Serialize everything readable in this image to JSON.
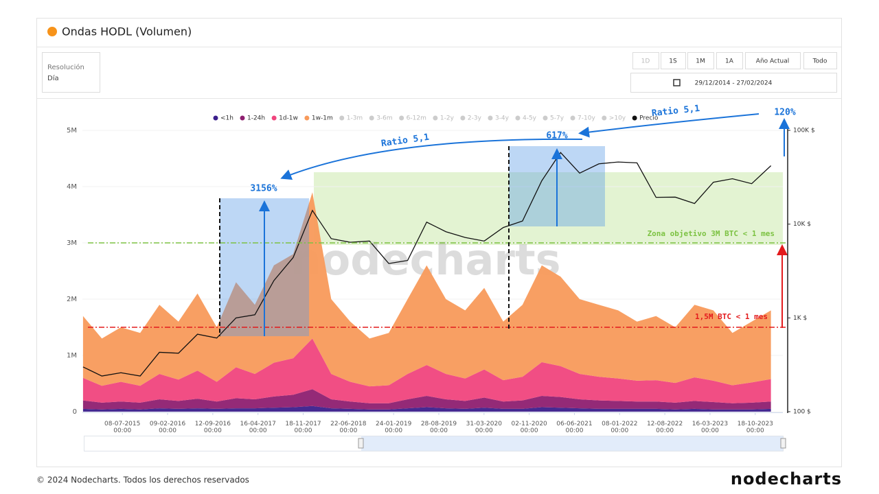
{
  "header": {
    "title": "Ondas HODL (Volumen)"
  },
  "controls": {
    "resolution_label": "Resolución",
    "resolution_value": "Día",
    "buttons": [
      "1D",
      "1S",
      "1M",
      "1A",
      "Año Actual",
      "Todo"
    ],
    "date_range": "29/12/2014 - 27/02/2024"
  },
  "chart_data": {
    "type": "area",
    "stacked": true,
    "x": [
      "2015-01-01",
      "2015-04-01",
      "2015-07-01",
      "2015-10-01",
      "2016-01-01",
      "2016-04-01",
      "2016-07-01",
      "2016-10-01",
      "2017-01-01",
      "2017-04-01",
      "2017-07-01",
      "2017-10-01",
      "2018-01-01",
      "2018-04-01",
      "2018-07-01",
      "2018-10-01",
      "2019-01-01",
      "2019-04-01",
      "2019-07-01",
      "2019-10-01",
      "2020-01-01",
      "2020-04-01",
      "2020-07-01",
      "2020-10-01",
      "2021-01-01",
      "2021-04-01",
      "2021-07-01",
      "2021-10-01",
      "2022-01-01",
      "2022-04-01",
      "2022-07-01",
      "2022-10-01",
      "2023-01-01",
      "2023-04-01",
      "2023-07-01",
      "2023-10-01",
      "2024-01-01"
    ],
    "series": [
      {
        "name": "<1h",
        "color": "#3b1f8c",
        "values": [
          50000,
          40000,
          50000,
          40000,
          60000,
          50000,
          60000,
          50000,
          60000,
          60000,
          70000,
          80000,
          100000,
          60000,
          50000,
          40000,
          40000,
          60000,
          80000,
          60000,
          50000,
          70000,
          50000,
          50000,
          80000,
          70000,
          60000,
          50000,
          50000,
          50000,
          50000,
          40000,
          50000,
          40000,
          40000,
          40000,
          50000
        ]
      },
      {
        "name": "1-24h",
        "color": "#8e1f70",
        "values": [
          150000,
          120000,
          130000,
          120000,
          160000,
          140000,
          170000,
          130000,
          180000,
          160000,
          200000,
          220000,
          300000,
          160000,
          130000,
          110000,
          110000,
          160000,
          200000,
          160000,
          140000,
          180000,
          130000,
          150000,
          200000,
          190000,
          160000,
          150000,
          140000,
          130000,
          130000,
          120000,
          140000,
          130000,
          110000,
          120000,
          130000
        ]
      },
      {
        "name": "1d-1w",
        "color": "#f0457d",
        "values": [
          400000,
          300000,
          350000,
          300000,
          450000,
          380000,
          500000,
          350000,
          550000,
          450000,
          600000,
          650000,
          900000,
          450000,
          350000,
          300000,
          320000,
          450000,
          550000,
          450000,
          400000,
          500000,
          380000,
          420000,
          600000,
          550000,
          450000,
          420000,
          400000,
          370000,
          380000,
          350000,
          420000,
          380000,
          320000,
          360000,
          400000
        ]
      },
      {
        "name": "1w-1m",
        "color": "#f89a5b",
        "values": [
          1100000,
          840000,
          970000,
          940000,
          1230000,
          1030000,
          1370000,
          970000,
          1510000,
          1230000,
          1730000,
          1850000,
          2600000,
          1330000,
          1070000,
          850000,
          930000,
          1330000,
          1770000,
          1330000,
          1210000,
          1450000,
          1040000,
          1280000,
          1720000,
          1590000,
          1330000,
          1280000,
          1210000,
          1050000,
          1140000,
          990000,
          1290000,
          1250000,
          930000,
          1080000,
          1220000
        ]
      },
      {
        "name": "Precio",
        "color": "#111111",
        "axis": "y2",
        "values": [
          300,
          240,
          260,
          240,
          430,
          420,
          670,
          610,
          1000,
          1080,
          2500,
          4400,
          14000,
          7000,
          6400,
          6600,
          3800,
          4100,
          10500,
          8300,
          7200,
          6600,
          9200,
          10800,
          29000,
          58000,
          35000,
          44000,
          46000,
          45000,
          19300,
          19400,
          16600,
          28000,
          30500,
          27000,
          42000
        ]
      }
    ],
    "hidden_series": [
      "1-3m",
      "3-6m",
      "6-12m",
      "1-2y",
      "2-3y",
      "3-4y",
      "4-5y",
      "5-7y",
      "7-10y",
      ">10y"
    ],
    "xlim": [
      "2014-12-29",
      "2024-02-27"
    ],
    "xticks": [
      {
        "value": "2015-07-08",
        "label": "08-07-2015 00:00"
      },
      {
        "value": "2016-02-09",
        "label": "09-02-2016 00:00"
      },
      {
        "value": "2016-09-12",
        "label": "12-09-2016 00:00"
      },
      {
        "value": "2017-04-16",
        "label": "16-04-2017 00:00"
      },
      {
        "value": "2017-11-18",
        "label": "18-11-2017 00:00"
      },
      {
        "value": "2018-06-22",
        "label": "22-06-2018 00:00"
      },
      {
        "value": "2019-01-24",
        "label": "24-01-2019 00:00"
      },
      {
        "value": "2019-08-28",
        "label": "28-08-2019 00:00"
      },
      {
        "value": "2020-03-31",
        "label": "31-03-2020 00:00"
      },
      {
        "value": "2020-11-02",
        "label": "02-11-2020 00:00"
      },
      {
        "value": "2021-06-06",
        "label": "06-06-2021 00:00"
      },
      {
        "value": "2022-01-08",
        "label": "08-01-2022 00:00"
      },
      {
        "value": "2022-08-12",
        "label": "12-08-2022 00:00"
      },
      {
        "value": "2023-03-16",
        "label": "16-03-2023 00:00"
      },
      {
        "value": "2023-10-18",
        "label": "18-10-2023 00:00"
      }
    ],
    "ylim": [
      0,
      5000000
    ],
    "yticks": [
      0,
      {
        "value": 1000000,
        "label": "1M"
      },
      {
        "value": 2000000,
        "label": "2M"
      },
      {
        "value": 3000000,
        "label": "3M"
      },
      {
        "value": 4000000,
        "label": "4M"
      },
      {
        "value": 5000000,
        "label": "5M"
      }
    ],
    "y2lim": [
      100,
      100000
    ],
    "y2log": true,
    "y2ticks": [
      {
        "value": 100,
        "label": "100 $"
      },
      {
        "value": 1000,
        "label": "1K $"
      },
      {
        "value": 10000,
        "label": "10K $"
      },
      {
        "value": 100000,
        "label": "100K $"
      }
    ],
    "reference_lines": [
      {
        "value": 3000000,
        "label": "Zona objetivo  3M BTC < 1 mes",
        "color": "#7cc242"
      },
      {
        "value": 1500000,
        "label": "1,5M BTC < 1 mes",
        "color": "#e31a1c"
      }
    ],
    "annotations": [
      "3156%",
      "617%",
      "120%",
      "Ratio 5,1",
      "Ratio 5,1"
    ],
    "watermark": "nodecharts"
  },
  "footer": {
    "copyright": "© 2024 Nodecharts. Todos los derechos reservados",
    "logo": "nodecharts"
  }
}
